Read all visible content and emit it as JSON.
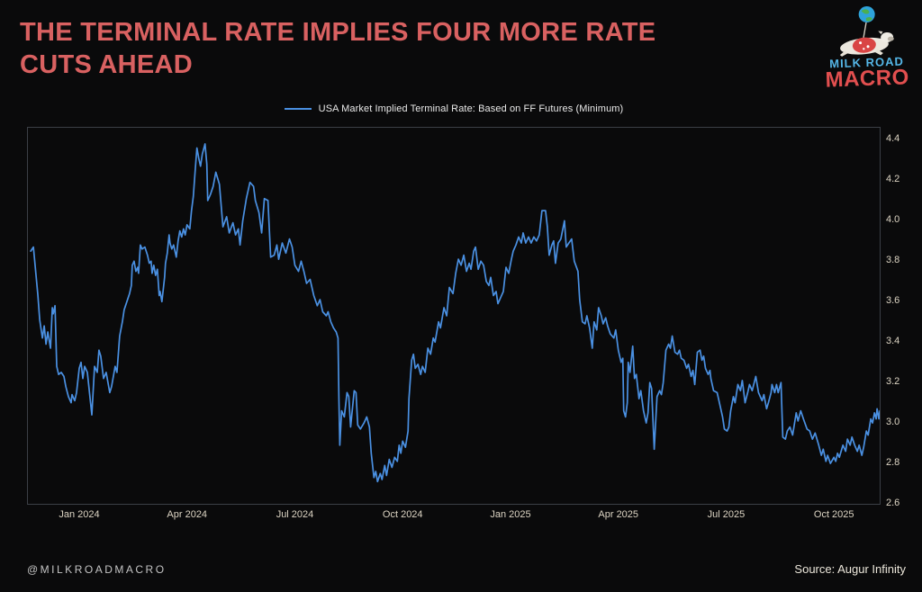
{
  "header": {
    "title_line1": "THE TERMINAL RATE IMPLIES FOUR MORE RATE",
    "title_line2": "CUTS AHEAD",
    "title_color": "#d96161"
  },
  "logo": {
    "line1": "MILK ROAD",
    "line2": "MACRO",
    "line1_color": "#55b7e8",
    "line2_color": "#e14f4f"
  },
  "legend": {
    "label": "USA Market Implied Terminal Rate: Based on FF Futures (Minimum)",
    "line_color": "#4a90e2"
  },
  "footer": {
    "handle": "@MILKROADMACRO",
    "source": "Source: Augur Infinity"
  },
  "chart_data": {
    "type": "line",
    "series_name": "USA Market Implied Terminal Rate: Based on FF Futures (Minimum)",
    "x_unit": "decimal_year",
    "xlim": [
      2023.881,
      2025.856
    ],
    "ylim": [
      2.6,
      4.46
    ],
    "grid": false,
    "legend_position": "top center",
    "line_color": "#4a90e2",
    "frame_color": "#3b3f46",
    "tick_color": "#ddd5c4",
    "background_color": "#0a0a0b",
    "y_ticks": [
      2.6,
      2.8,
      3.0,
      3.2,
      3.4,
      3.6,
      3.8,
      4.0,
      4.2,
      4.4
    ],
    "x_ticks": [
      {
        "t": 2024.0,
        "label": "Jan 2024"
      },
      {
        "t": 2024.25,
        "label": "Apr 2024"
      },
      {
        "t": 2024.5,
        "label": "Jul 2024"
      },
      {
        "t": 2024.75,
        "label": "Oct 2024"
      },
      {
        "t": 2025.0,
        "label": "Jan 2025"
      },
      {
        "t": 2025.25,
        "label": "Apr 2025"
      },
      {
        "t": 2025.5,
        "label": "Jul 2025"
      },
      {
        "t": 2025.75,
        "label": "Oct 2025"
      }
    ],
    "points": [
      [
        2023.8875,
        3.85
      ],
      [
        2023.8938,
        3.87
      ],
      [
        2023.9042,
        3.63
      ],
      [
        2023.9083,
        3.51
      ],
      [
        2023.9146,
        3.42
      ],
      [
        2023.9188,
        3.48
      ],
      [
        2023.9229,
        3.39
      ],
      [
        2023.9271,
        3.45
      ],
      [
        2023.9333,
        3.37
      ],
      [
        2023.9375,
        3.57
      ],
      [
        2023.9396,
        3.54
      ],
      [
        2023.9438,
        3.58
      ],
      [
        2023.9479,
        3.28
      ],
      [
        2023.9521,
        3.24
      ],
      [
        2023.9583,
        3.25
      ],
      [
        2023.9646,
        3.23
      ],
      [
        2023.9688,
        3.18
      ],
      [
        2023.975,
        3.13
      ],
      [
        2023.9813,
        3.1
      ],
      [
        2023.9833,
        3.14
      ],
      [
        2023.9896,
        3.11
      ],
      [
        2023.9938,
        3.15
      ],
      [
        2024.0,
        3.27
      ],
      [
        2024.0042,
        3.3
      ],
      [
        2024.0083,
        3.22
      ],
      [
        2024.0125,
        3.28
      ],
      [
        2024.0188,
        3.25
      ],
      [
        2024.0292,
        3.04
      ],
      [
        2024.0354,
        3.28
      ],
      [
        2024.0417,
        3.25
      ],
      [
        2024.0458,
        3.36
      ],
      [
        2024.05,
        3.33
      ],
      [
        2024.0563,
        3.22
      ],
      [
        2024.0625,
        3.25
      ],
      [
        2024.0708,
        3.15
      ],
      [
        2024.075,
        3.18
      ],
      [
        2024.0833,
        3.28
      ],
      [
        2024.0875,
        3.25
      ],
      [
        2024.0938,
        3.43
      ],
      [
        2024.1,
        3.5
      ],
      [
        2024.1042,
        3.56
      ],
      [
        2024.1104,
        3.6
      ],
      [
        2024.1167,
        3.64
      ],
      [
        2024.1208,
        3.68
      ],
      [
        2024.1229,
        3.78
      ],
      [
        2024.1271,
        3.8
      ],
      [
        2024.1313,
        3.75
      ],
      [
        2024.1354,
        3.77
      ],
      [
        2024.1375,
        3.74
      ],
      [
        2024.1417,
        3.88
      ],
      [
        2024.1458,
        3.86
      ],
      [
        2024.1521,
        3.87
      ],
      [
        2024.1583,
        3.83
      ],
      [
        2024.1625,
        3.79
      ],
      [
        2024.1667,
        3.8
      ],
      [
        2024.1688,
        3.74
      ],
      [
        2024.1729,
        3.78
      ],
      [
        2024.1771,
        3.73
      ],
      [
        2024.1813,
        3.76
      ],
      [
        2024.1854,
        3.63
      ],
      [
        2024.1875,
        3.65
      ],
      [
        2024.1917,
        3.6
      ],
      [
        2024.1979,
        3.72
      ],
      [
        2024.2,
        3.79
      ],
      [
        2024.2042,
        3.84
      ],
      [
        2024.2083,
        3.93
      ],
      [
        2024.2104,
        3.89
      ],
      [
        2024.2146,
        3.86
      ],
      [
        2024.2188,
        3.88
      ],
      [
        2024.225,
        3.82
      ],
      [
        2024.2292,
        3.9
      ],
      [
        2024.2333,
        3.95
      ],
      [
        2024.2375,
        3.92
      ],
      [
        2024.2417,
        3.96
      ],
      [
        2024.2458,
        3.93
      ],
      [
        2024.25,
        3.98
      ],
      [
        2024.2563,
        3.96
      ],
      [
        2024.2604,
        4.05
      ],
      [
        2024.2646,
        4.12
      ],
      [
        2024.2688,
        4.25
      ],
      [
        2024.2729,
        4.36
      ],
      [
        2024.2771,
        4.31
      ],
      [
        2024.2813,
        4.27
      ],
      [
        2024.2854,
        4.33
      ],
      [
        2024.2917,
        4.38
      ],
      [
        2024.2958,
        4.28
      ],
      [
        2024.2979,
        4.1
      ],
      [
        2024.3042,
        4.13
      ],
      [
        2024.3104,
        4.17
      ],
      [
        2024.3167,
        4.24
      ],
      [
        2024.325,
        4.18
      ],
      [
        2024.3333,
        3.97
      ],
      [
        2024.3417,
        4.02
      ],
      [
        2024.3479,
        3.94
      ],
      [
        2024.3563,
        3.99
      ],
      [
        2024.3625,
        3.93
      ],
      [
        2024.3688,
        3.96
      ],
      [
        2024.3729,
        3.88
      ],
      [
        2024.3792,
        4.0
      ],
      [
        2024.3875,
        4.11
      ],
      [
        2024.3958,
        4.19
      ],
      [
        2024.4042,
        4.17
      ],
      [
        2024.4083,
        4.1
      ],
      [
        2024.4167,
        4.04
      ],
      [
        2024.4229,
        3.94
      ],
      [
        2024.4292,
        4.11
      ],
      [
        2024.4375,
        4.1
      ],
      [
        2024.4438,
        3.82
      ],
      [
        2024.4521,
        3.83
      ],
      [
        2024.4583,
        3.88
      ],
      [
        2024.4625,
        3.81
      ],
      [
        2024.4708,
        3.89
      ],
      [
        2024.4792,
        3.84
      ],
      [
        2024.4875,
        3.91
      ],
      [
        2024.4938,
        3.87
      ],
      [
        2024.5,
        3.78
      ],
      [
        2024.5083,
        3.75
      ],
      [
        2024.5146,
        3.8
      ],
      [
        2024.5208,
        3.75
      ],
      [
        2024.5271,
        3.69
      ],
      [
        2024.5354,
        3.71
      ],
      [
        2024.5438,
        3.63
      ],
      [
        2024.5521,
        3.58
      ],
      [
        2024.5583,
        3.61
      ],
      [
        2024.5646,
        3.55
      ],
      [
        2024.5729,
        3.53
      ],
      [
        2024.5771,
        3.55
      ],
      [
        2024.5833,
        3.5
      ],
      [
        2024.5896,
        3.47
      ],
      [
        2024.5958,
        3.45
      ],
      [
        2024.6,
        3.42
      ],
      [
        2024.6021,
        3.12
      ],
      [
        2024.6042,
        2.89
      ],
      [
        2024.6083,
        3.06
      ],
      [
        2024.6146,
        3.03
      ],
      [
        2024.6208,
        3.15
      ],
      [
        2024.625,
        3.13
      ],
      [
        2024.6292,
        2.98
      ],
      [
        2024.6375,
        3.16
      ],
      [
        2024.6417,
        3.15
      ],
      [
        2024.6458,
        2.99
      ],
      [
        2024.6521,
        2.97
      ],
      [
        2024.6604,
        3.0
      ],
      [
        2024.6667,
        3.03
      ],
      [
        2024.6729,
        2.98
      ],
      [
        2024.6771,
        2.85
      ],
      [
        2024.6833,
        2.73
      ],
      [
        2024.6875,
        2.76
      ],
      [
        2024.6917,
        2.71
      ],
      [
        2024.6979,
        2.75
      ],
      [
        2024.7021,
        2.72
      ],
      [
        2024.7083,
        2.79
      ],
      [
        2024.7125,
        2.74
      ],
      [
        2024.7188,
        2.82
      ],
      [
        2024.725,
        2.78
      ],
      [
        2024.7313,
        2.83
      ],
      [
        2024.7375,
        2.81
      ],
      [
        2024.7417,
        2.89
      ],
      [
        2024.7458,
        2.85
      ],
      [
        2024.75,
        2.91
      ],
      [
        2024.7563,
        2.88
      ],
      [
        2024.7625,
        2.96
      ],
      [
        2024.7646,
        3.12
      ],
      [
        2024.7708,
        3.31
      ],
      [
        2024.775,
        3.34
      ],
      [
        2024.7792,
        3.27
      ],
      [
        2024.7854,
        3.29
      ],
      [
        2024.7917,
        3.24
      ],
      [
        2024.7958,
        3.28
      ],
      [
        2024.8021,
        3.25
      ],
      [
        2024.8083,
        3.37
      ],
      [
        2024.8146,
        3.34
      ],
      [
        2024.8208,
        3.42
      ],
      [
        2024.825,
        3.4
      ],
      [
        2024.8333,
        3.5
      ],
      [
        2024.8375,
        3.47
      ],
      [
        2024.8458,
        3.57
      ],
      [
        2024.8521,
        3.53
      ],
      [
        2024.8583,
        3.67
      ],
      [
        2024.8667,
        3.64
      ],
      [
        2024.8729,
        3.74
      ],
      [
        2024.8792,
        3.81
      ],
      [
        2024.8854,
        3.78
      ],
      [
        2024.8917,
        3.83
      ],
      [
        2024.8979,
        3.75
      ],
      [
        2024.9042,
        3.79
      ],
      [
        2024.9083,
        3.76
      ],
      [
        2024.9146,
        3.85
      ],
      [
        2024.9188,
        3.87
      ],
      [
        2024.925,
        3.76
      ],
      [
        2024.9313,
        3.8
      ],
      [
        2024.9375,
        3.78
      ],
      [
        2024.9438,
        3.7
      ],
      [
        2024.95,
        3.68
      ],
      [
        2024.9542,
        3.72
      ],
      [
        2024.9604,
        3.63
      ],
      [
        2024.9667,
        3.65
      ],
      [
        2024.9708,
        3.59
      ],
      [
        2024.9771,
        3.62
      ],
      [
        2024.9833,
        3.65
      ],
      [
        2024.9896,
        3.77
      ],
      [
        2024.9958,
        3.74
      ],
      [
        2025.0021,
        3.81
      ],
      [
        2025.0063,
        3.85
      ],
      [
        2025.0125,
        3.88
      ],
      [
        2025.0188,
        3.92
      ],
      [
        2025.025,
        3.89
      ],
      [
        2025.0292,
        3.94
      ],
      [
        2025.0354,
        3.89
      ],
      [
        2025.0417,
        3.92
      ],
      [
        2025.0479,
        3.89
      ],
      [
        2025.0542,
        3.92
      ],
      [
        2025.0604,
        3.9
      ],
      [
        2025.0667,
        3.93
      ],
      [
        2025.0729,
        4.05
      ],
      [
        2025.0813,
        4.05
      ],
      [
        2025.0854,
        3.97
      ],
      [
        2025.0896,
        3.83
      ],
      [
        2025.0958,
        3.88
      ],
      [
        2025.1,
        3.9
      ],
      [
        2025.1042,
        3.79
      ],
      [
        2025.1104,
        3.89
      ],
      [
        2025.1167,
        3.91
      ],
      [
        2025.125,
        4.0
      ],
      [
        2025.1292,
        3.87
      ],
      [
        2025.1354,
        3.89
      ],
      [
        2025.1417,
        3.91
      ],
      [
        2025.1479,
        3.8
      ],
      [
        2025.1563,
        3.75
      ],
      [
        2025.1604,
        3.61
      ],
      [
        2025.1667,
        3.5
      ],
      [
        2025.1729,
        3.49
      ],
      [
        2025.1771,
        3.53
      ],
      [
        2025.1833,
        3.47
      ],
      [
        2025.1896,
        3.37
      ],
      [
        2025.1938,
        3.5
      ],
      [
        2025.2,
        3.46
      ],
      [
        2025.2042,
        3.57
      ],
      [
        2025.2104,
        3.53
      ],
      [
        2025.2146,
        3.49
      ],
      [
        2025.2208,
        3.52
      ],
      [
        2025.225,
        3.48
      ],
      [
        2025.2313,
        3.44
      ],
      [
        2025.2396,
        3.42
      ],
      [
        2025.2438,
        3.46
      ],
      [
        2025.25,
        3.36
      ],
      [
        2025.2563,
        3.3
      ],
      [
        2025.2604,
        3.32
      ],
      [
        2025.2625,
        3.06
      ],
      [
        2025.2667,
        3.03
      ],
      [
        2025.2708,
        3.1
      ],
      [
        2025.2729,
        3.3
      ],
      [
        2025.2771,
        3.25
      ],
      [
        2025.2833,
        3.38
      ],
      [
        2025.2875,
        3.22
      ],
      [
        2025.2917,
        3.24
      ],
      [
        2025.2979,
        3.12
      ],
      [
        2025.3021,
        3.16
      ],
      [
        2025.3083,
        3.06
      ],
      [
        2025.3146,
        3.0
      ],
      [
        2025.3188,
        3.05
      ],
      [
        2025.3229,
        3.2
      ],
      [
        2025.3271,
        3.17
      ],
      [
        2025.3333,
        2.87
      ],
      [
        2025.3396,
        3.13
      ],
      [
        2025.3458,
        3.16
      ],
      [
        2025.35,
        3.14
      ],
      [
        2025.3542,
        3.2
      ],
      [
        2025.3604,
        3.36
      ],
      [
        2025.3667,
        3.39
      ],
      [
        2025.3708,
        3.37
      ],
      [
        2025.375,
        3.43
      ],
      [
        2025.3813,
        3.35
      ],
      [
        2025.3875,
        3.34
      ],
      [
        2025.3917,
        3.36
      ],
      [
        2025.3958,
        3.32
      ],
      [
        2025.4021,
        3.31
      ],
      [
        2025.4083,
        3.27
      ],
      [
        2025.4125,
        3.29
      ],
      [
        2025.4188,
        3.23
      ],
      [
        2025.4229,
        3.26
      ],
      [
        2025.4271,
        3.19
      ],
      [
        2025.4333,
        3.35
      ],
      [
        2025.4396,
        3.36
      ],
      [
        2025.4438,
        3.31
      ],
      [
        2025.4479,
        3.33
      ],
      [
        2025.4521,
        3.27
      ],
      [
        2025.4583,
        3.24
      ],
      [
        2025.4625,
        3.26
      ],
      [
        2025.4646,
        3.22
      ],
      [
        2025.4708,
        3.16
      ],
      [
        2025.4792,
        3.15
      ],
      [
        2025.4854,
        3.09
      ],
      [
        2025.4917,
        3.03
      ],
      [
        2025.4958,
        2.97
      ],
      [
        2025.5021,
        2.96
      ],
      [
        2025.5063,
        2.98
      ],
      [
        2025.5104,
        3.06
      ],
      [
        2025.5167,
        3.13
      ],
      [
        2025.5208,
        3.1
      ],
      [
        2025.5271,
        3.19
      ],
      [
        2025.5333,
        3.16
      ],
      [
        2025.5375,
        3.21
      ],
      [
        2025.5438,
        3.1
      ],
      [
        2025.55,
        3.15
      ],
      [
        2025.5542,
        3.19
      ],
      [
        2025.5604,
        3.16
      ],
      [
        2025.5688,
        3.23
      ],
      [
        2025.575,
        3.15
      ],
      [
        2025.5833,
        3.11
      ],
      [
        2025.5875,
        3.14
      ],
      [
        2025.5938,
        3.07
      ],
      [
        2025.5979,
        3.1
      ],
      [
        2025.6042,
        3.15
      ],
      [
        2025.6063,
        3.19
      ],
      [
        2025.6125,
        3.15
      ],
      [
        2025.6167,
        3.19
      ],
      [
        2025.6208,
        3.15
      ],
      [
        2025.6271,
        3.2
      ],
      [
        2025.6313,
        2.93
      ],
      [
        2025.6375,
        2.92
      ],
      [
        2025.6417,
        2.96
      ],
      [
        2025.6479,
        2.98
      ],
      [
        2025.6542,
        2.94
      ],
      [
        2025.6625,
        3.05
      ],
      [
        2025.6667,
        3.01
      ],
      [
        2025.6729,
        3.06
      ],
      [
        2025.6792,
        3.02
      ],
      [
        2025.6875,
        2.97
      ],
      [
        2025.6938,
        2.96
      ],
      [
        2025.7,
        2.92
      ],
      [
        2025.7063,
        2.95
      ],
      [
        2025.7146,
        2.89
      ],
      [
        2025.7208,
        2.84
      ],
      [
        2025.725,
        2.87
      ],
      [
        2025.7313,
        2.81
      ],
      [
        2025.7354,
        2.84
      ],
      [
        2025.7417,
        2.8
      ],
      [
        2025.75,
        2.83
      ],
      [
        2025.7542,
        2.81
      ],
      [
        2025.7583,
        2.85
      ],
      [
        2025.7625,
        2.83
      ],
      [
        2025.7708,
        2.89
      ],
      [
        2025.7771,
        2.86
      ],
      [
        2025.7813,
        2.92
      ],
      [
        2025.7875,
        2.89
      ],
      [
        2025.7917,
        2.93
      ],
      [
        2025.7979,
        2.89
      ],
      [
        2025.8042,
        2.86
      ],
      [
        2025.8083,
        2.89
      ],
      [
        2025.8146,
        2.84
      ],
      [
        2025.8188,
        2.88
      ],
      [
        2025.825,
        2.96
      ],
      [
        2025.8292,
        2.94
      ],
      [
        2025.8354,
        3.02
      ],
      [
        2025.8396,
        3.0
      ],
      [
        2025.8438,
        3.05
      ],
      [
        2025.8479,
        3.02
      ],
      [
        2025.85,
        3.07
      ],
      [
        2025.8542,
        3.02
      ],
      [
        2025.8563,
        3.06
      ]
    ]
  }
}
